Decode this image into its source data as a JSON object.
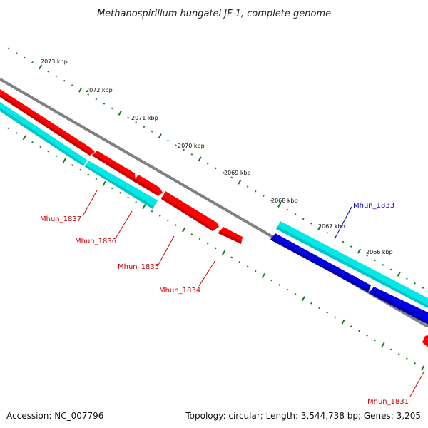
{
  "title": "Methanospirillum hungatei JF-1, complete genome",
  "footer": {
    "accession": "Accession: NC_007796",
    "summary": "Topology: circular; Length: 3,544,738 bp; Genes: 3,205"
  },
  "colors": {
    "backbone": "#808080",
    "tick": "#1a7a1a",
    "forward_cds": "#ff0000",
    "reverse_cds": "#0000e0",
    "gene_track": "#00e8e8",
    "forward_label": "#cc0000",
    "reverse_label": "#0000cc"
  },
  "ticks": [
    {
      "label": "2073 kbp"
    },
    {
      "label": "2072 kbp"
    },
    {
      "label": "2071 kbp"
    },
    {
      "label": "2070 kbp"
    },
    {
      "label": "2069 kbp"
    },
    {
      "label": "2068 kbp"
    },
    {
      "label": "2067 kbp"
    },
    {
      "label": "2066 kbp"
    }
  ],
  "genes": [
    {
      "label": "Mhun_1837",
      "strand": "forward"
    },
    {
      "label": "Mhun_1836",
      "strand": "forward"
    },
    {
      "label": "Mhun_1835",
      "strand": "forward"
    },
    {
      "label": "Mhun_1834",
      "strand": "forward"
    },
    {
      "label": "Mhun_1833",
      "strand": "reverse"
    },
    {
      "label": "Mhun_1831",
      "strand": "forward"
    }
  ]
}
